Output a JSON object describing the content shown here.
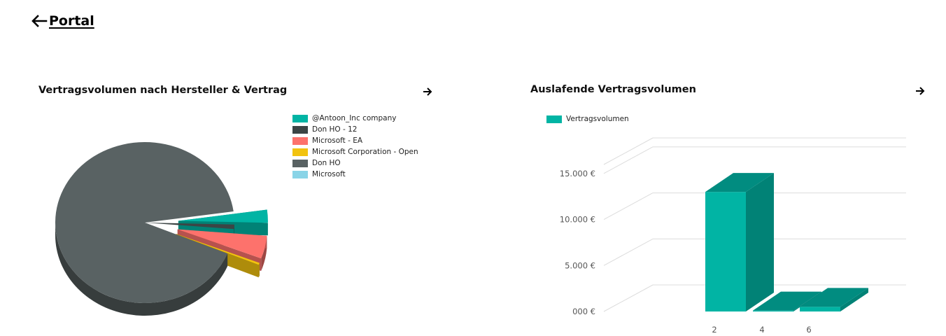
{
  "nav": {
    "back_label": "Portal"
  },
  "charts": {
    "left": {
      "title": "Vertragsvolumen nach Hersteller & Vertrag"
    },
    "right": {
      "title": "Auslafende Vertragsvolumen"
    }
  },
  "icons": {
    "back": "arrow-left-icon",
    "next": "arrow-right-icon"
  },
  "chart_data": [
    {
      "type": "pie",
      "title": "Vertragsvolumen nach Hersteller & Vertrag",
      "legend_position": "right",
      "slices": [
        {
          "name": "@Antoon_Inc company",
          "value": 2.6,
          "color": "#01b4a4"
        },
        {
          "name": "Don HO - 12",
          "value": 0.9,
          "color": "#3c4545"
        },
        {
          "name": "Microsoft - EA",
          "value": 4.6,
          "color": "#fd726c"
        },
        {
          "name": "Microsoft Corporation - Open",
          "value": 0.4,
          "color": "#f2c30f"
        },
        {
          "name": "Don HO",
          "value": 91.5,
          "color": "#596263"
        },
        {
          "name": "Microsoft",
          "value": 0,
          "color": "#89d4e7"
        }
      ],
      "exploded": [
        "@Antoon_Inc company",
        "Microsoft - EA",
        "Microsoft Corporation - Open"
      ]
    },
    {
      "type": "bar",
      "title": "Auslafende Vertragsvolumen",
      "categories": [
        "2",
        "4",
        "6"
      ],
      "series": [
        {
          "name": "Vertragsvolumen",
          "values": [
            13000,
            100,
            500
          ],
          "color": "#01b4a4"
        }
      ],
      "ylim": [
        0,
        17500
      ],
      "ytick_values": [
        0,
        5000,
        10000,
        15000
      ],
      "ytick_labels": [
        "000  €",
        "5.000  €",
        "10.000  €",
        "15.000  €"
      ],
      "legend_position": "top-left",
      "grid": true
    }
  ]
}
